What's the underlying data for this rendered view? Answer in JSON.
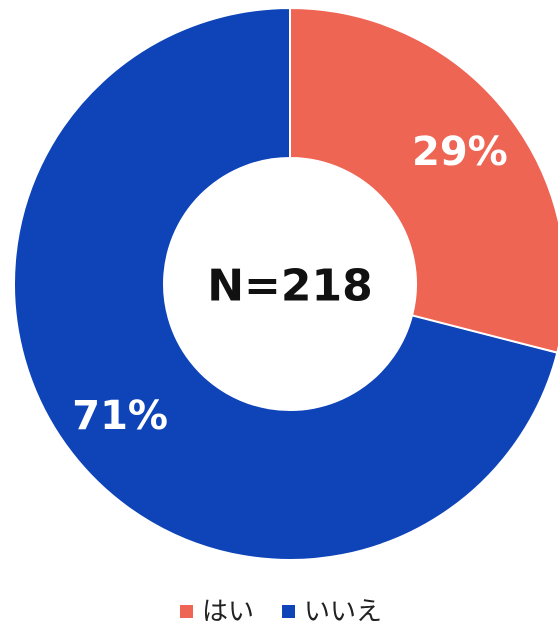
{
  "chart_data": {
    "type": "donut",
    "categories": [
      "はい",
      "いいえ"
    ],
    "values": [
      29,
      71
    ],
    "value_labels": [
      "29%",
      "71%"
    ],
    "colors": [
      "#ef6554",
      "#0f44b9"
    ],
    "center_label": "N=218",
    "legend": "bottom"
  }
}
